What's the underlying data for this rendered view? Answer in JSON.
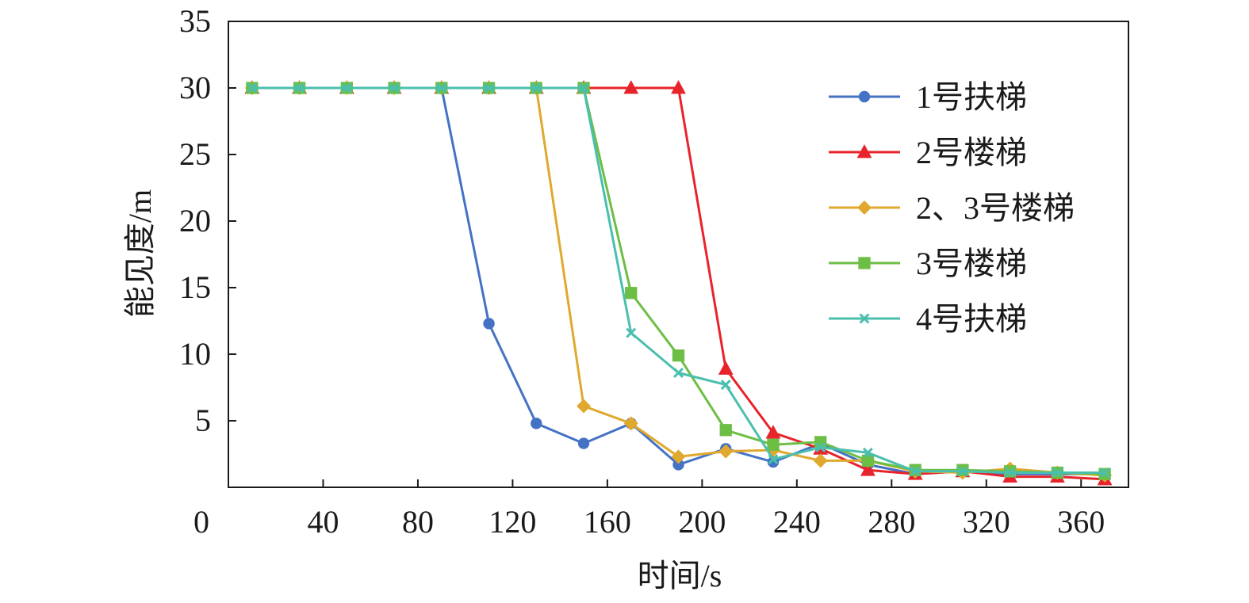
{
  "chart_data": {
    "type": "line",
    "title": "",
    "xlabel": "时间/s",
    "ylabel": "能见度/m",
    "xlim": [
      0,
      380
    ],
    "ylim": [
      0,
      35
    ],
    "x_ticks": [
      40,
      80,
      120,
      160,
      200,
      240,
      280,
      320,
      360
    ],
    "x_tick_labels": [
      "40",
      "80",
      "120",
      "160",
      "200",
      "240",
      "280",
      "320",
      "360"
    ],
    "y_ticks": [
      5,
      10,
      15,
      20,
      25,
      30,
      35
    ],
    "y_tick_labels": [
      "5",
      "10",
      "15",
      "20",
      "25",
      "30",
      "35"
    ],
    "origin_label": "0",
    "grid": false,
    "legend_position": "top-right",
    "x": [
      10,
      30,
      50,
      70,
      90,
      110,
      130,
      150,
      170,
      190,
      210,
      230,
      250,
      270,
      290,
      310,
      330,
      350,
      370
    ],
    "series": [
      {
        "name": "1号扶梯",
        "color": "#4472C4",
        "marker": "circle",
        "values": [
          30,
          30,
          30,
          30,
          30,
          12.3,
          4.8,
          3.3,
          4.8,
          1.7,
          2.9,
          1.9,
          3.3,
          1.7,
          1.0,
          1.2,
          1.0,
          1.0,
          1.0
        ]
      },
      {
        "name": "2号楼梯",
        "color": "#E8232B",
        "marker": "triangle",
        "values": [
          30,
          30,
          30,
          30,
          30,
          30,
          30,
          30,
          30,
          30,
          8.9,
          4.1,
          2.9,
          1.3,
          1.0,
          1.2,
          0.8,
          0.8,
          0.6
        ]
      },
      {
        "name": "2、3号楼梯",
        "color": "#E0A92E",
        "marker": "diamond",
        "values": [
          30,
          30,
          30,
          30,
          30,
          30,
          30,
          6.1,
          4.8,
          2.3,
          2.7,
          2.8,
          2.0,
          2.0,
          1.2,
          1.1,
          1.4,
          1.1,
          0.9
        ]
      },
      {
        "name": "3号楼梯",
        "color": "#6DBE45",
        "marker": "square",
        "values": [
          30,
          30,
          30,
          30,
          30,
          30,
          30,
          30,
          14.6,
          9.9,
          4.3,
          3.2,
          3.4,
          2.0,
          1.3,
          1.3,
          1.2,
          1.1,
          1.0
        ]
      },
      {
        "name": "4号扶梯",
        "color": "#4ABFAE",
        "marker": "x",
        "values": [
          30,
          30,
          30,
          30,
          30,
          30,
          30,
          30,
          11.6,
          8.6,
          7.7,
          2.1,
          3.0,
          2.6,
          1.2,
          1.2,
          1.1,
          1.1,
          1.1
        ]
      }
    ]
  }
}
